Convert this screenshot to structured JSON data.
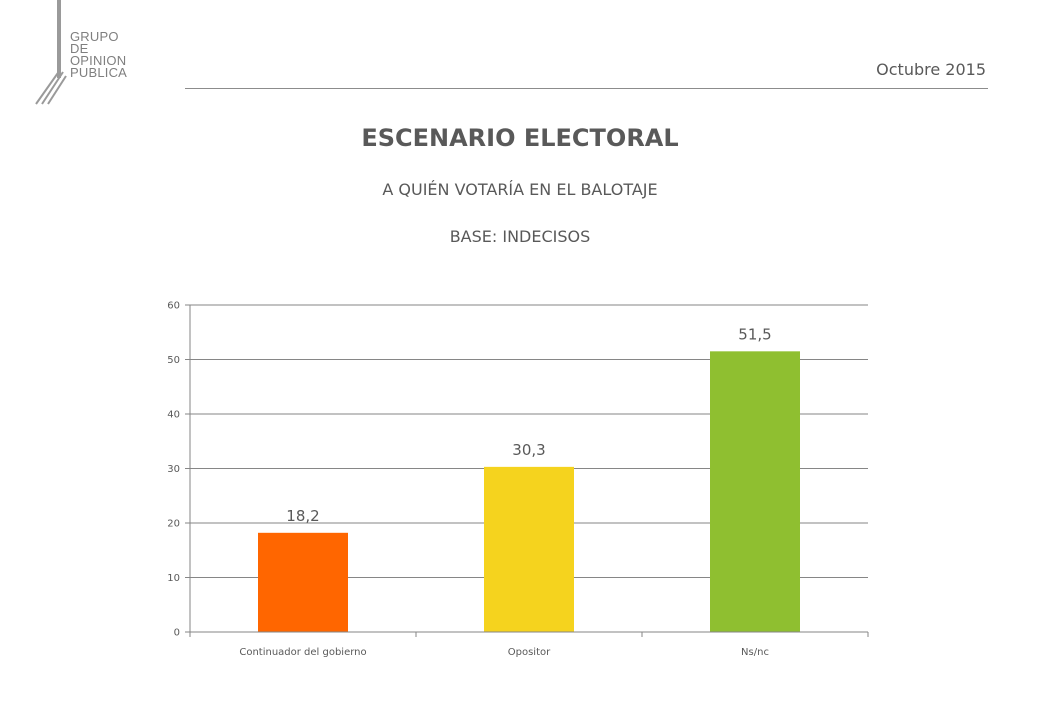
{
  "logo": {
    "lines": [
      "GRUPO",
      "DE",
      "OPINION",
      "PUBLICA"
    ]
  },
  "header": {
    "date": "Octubre 2015"
  },
  "titles": {
    "main": "ESCENARIO ELECTORAL",
    "subtitle": "A QUIÉN VOTARÍA EN EL BALOTAJE",
    "base": "BASE: INDECISOS"
  },
  "colors": {
    "text": "#595959",
    "grid": "#868686",
    "bar_colors": [
      "#ff6600",
      "#f5d31e",
      "#8fbf30"
    ]
  },
  "chart_data": {
    "type": "bar",
    "categories": [
      "Continuador del gobierno",
      "Opositor",
      "Ns/nc"
    ],
    "values": [
      18.2,
      30.3,
      51.5
    ],
    "value_labels": [
      "18,2",
      "30,3",
      "51,5"
    ],
    "ylim": [
      0,
      60
    ],
    "yticks": [
      0,
      10,
      20,
      30,
      40,
      50,
      60
    ],
    "grid": true,
    "legend": "none",
    "xlabel": "",
    "ylabel": ""
  }
}
